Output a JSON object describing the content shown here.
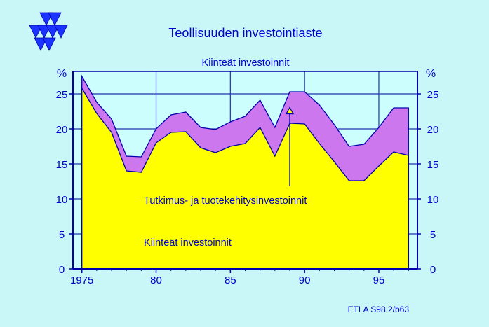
{
  "title": "Teollisuuden investointiaste",
  "subtitle": "Kiinteät investoinnit",
  "source": "ETLA S98.2/b63",
  "colors": {
    "background": "#c9f7f7",
    "plot_background": "#ccfefe",
    "text": "#0000cc",
    "axis": "#0000aa",
    "fixed_investment": "#ffff00",
    "rnd_investment": "#cc77ee",
    "logo": "#1a33ff"
  },
  "chart_data": {
    "type": "area",
    "title": "Teollisuuden investointiaste",
    "subtitle": "Kiinteät investoinnit",
    "ylabel_left": "%",
    "ylabel_right": "%",
    "xlim": [
      1974.4,
      1997.6
    ],
    "ylim": [
      0,
      28.2
    ],
    "x_ticks": [
      1975,
      1980,
      1985,
      1990,
      1995
    ],
    "x_tick_labels": [
      "1975",
      "80",
      "85",
      "90",
      "95"
    ],
    "y_ticks": [
      0,
      5,
      10,
      15,
      20,
      25
    ],
    "grid": true,
    "x": [
      1975,
      1976,
      1977,
      1978,
      1979,
      1980,
      1981,
      1982,
      1983,
      1984,
      1985,
      1986,
      1987,
      1988,
      1989,
      1990,
      1991,
      1992,
      1993,
      1994,
      1995,
      1996,
      1997
    ],
    "series": [
      {
        "name": "Kiinteät investoinnit",
        "values": [
          25.8,
          22.2,
          19.5,
          14.0,
          13.8,
          18.0,
          19.5,
          19.6,
          17.3,
          16.6,
          17.5,
          17.9,
          20.2,
          16.1,
          20.8,
          20.7,
          17.9,
          15.3,
          12.6,
          12.6,
          14.7,
          16.7,
          16.2
        ]
      },
      {
        "name": "Tutkimus- ja tuotekehitysinvestoinnit",
        "values": [
          27.5,
          23.8,
          21.4,
          16.1,
          16.0,
          20.0,
          22.0,
          22.4,
          20.2,
          19.9,
          21.0,
          21.8,
          24.1,
          20.2,
          25.3,
          25.3,
          23.4,
          20.6,
          17.5,
          17.8,
          20.2,
          23.0,
          23.0
        ]
      }
    ],
    "annotations": [
      {
        "text": "Tutkimus- ja tuotekehitysinvestoinnit",
        "target": "Tutkimus- ja tuotekehitysinvestoinnit",
        "arrow": true
      },
      {
        "text": "Kiinteät investoinnit",
        "target": "Kiinteät investoinnit",
        "arrow": false
      }
    ]
  }
}
